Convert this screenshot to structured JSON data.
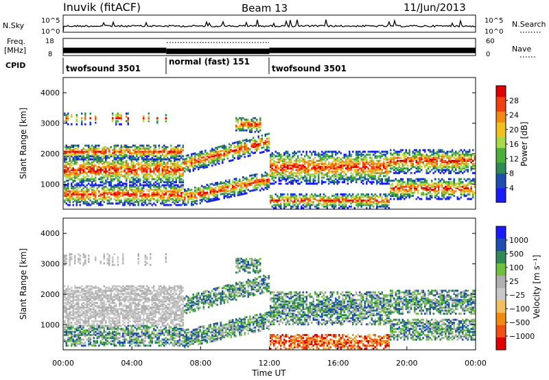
{
  "header": {
    "station": "Inuvik (fitACF)",
    "beam": "Beam 13",
    "date": "11/Jun/2013"
  },
  "colors": {
    "axis": "#000000",
    "noise_line": "#000000",
    "freq_band": "#000000",
    "power_scale": [
      "#1a1aff",
      "#1e4fb0",
      "#2f8a55",
      "#4caf3a",
      "#a7d94a",
      "#f0c020",
      "#f08a10",
      "#f04010",
      "#e00000"
    ],
    "velocity_scale": [
      "#e00000",
      "#f05010",
      "#f08a10",
      "#f0c060",
      "#c8c8c8",
      "#b0b0b0",
      "#70c040",
      "#2f8a55",
      "#1e4fb0",
      "#1a1aff"
    ]
  },
  "chart_data": [
    {
      "type": "line",
      "name": "noise-panel",
      "left_label": "N.Sky",
      "right_label": "N.Search",
      "left_ticks": [
        "10^5",
        "10^0"
      ],
      "right_ticks": [
        "10^5",
        "10^0"
      ],
      "x_range": [
        "00:00",
        "24:00"
      ]
    },
    {
      "type": "area",
      "name": "freq-nave-panel",
      "left_label_line1": "Freq.",
      "left_label_line2": "[MHz]",
      "right_label": "Nave",
      "left_ticks": [
        18,
        8
      ],
      "right_ticks": [
        60,
        0
      ],
      "freq_segments": [
        {
          "start_hr": 0,
          "end_hr": 6,
          "freq_mhz": 11
        },
        {
          "start_hr": 6,
          "end_hr": 12,
          "freq_mhz": 10.5
        },
        {
          "start_hr": 12,
          "end_hr": 24,
          "freq_mhz": 11
        }
      ]
    },
    {
      "type": "table",
      "name": "cpid-panel",
      "label": "CPID",
      "segments": [
        {
          "start_hr": 0,
          "end_hr": 6,
          "label": "twofsound 3501"
        },
        {
          "start_hr": 6,
          "end_hr": 12,
          "label": "normal (fast) 151"
        },
        {
          "start_hr": 12,
          "end_hr": 24,
          "label": "twofsound 3501"
        }
      ]
    },
    {
      "type": "heatmap",
      "name": "power-panel",
      "ylabel": "Slant Range [km]",
      "ylim": [
        180,
        4500
      ],
      "yticks": [
        1000,
        2000,
        3000,
        4000
      ],
      "colorbar_label": "Power [dB]",
      "colorbar_ticks": [
        4,
        8,
        12,
        16,
        20,
        24,
        28
      ],
      "colorbar_range": [
        0,
        32
      ]
    },
    {
      "type": "heatmap",
      "name": "velocity-panel",
      "ylabel": "Slant Range [km]",
      "ylim": [
        180,
        4500
      ],
      "yticks": [
        1000,
        2000,
        3000,
        4000
      ],
      "colorbar_label": "Velocity [m s⁻¹]",
      "colorbar_ticks": [
        "1000",
        "500",
        "100",
        "25",
        "−25",
        "−100",
        "−500",
        "−1000"
      ],
      "xlabel": "Time UT",
      "xticks": [
        "00:00",
        "04:00",
        "08:00",
        "12:00",
        "16:00",
        "20:00",
        "00:00"
      ],
      "xtick_hours": [
        0,
        4,
        8,
        12,
        16,
        20,
        24
      ]
    }
  ]
}
